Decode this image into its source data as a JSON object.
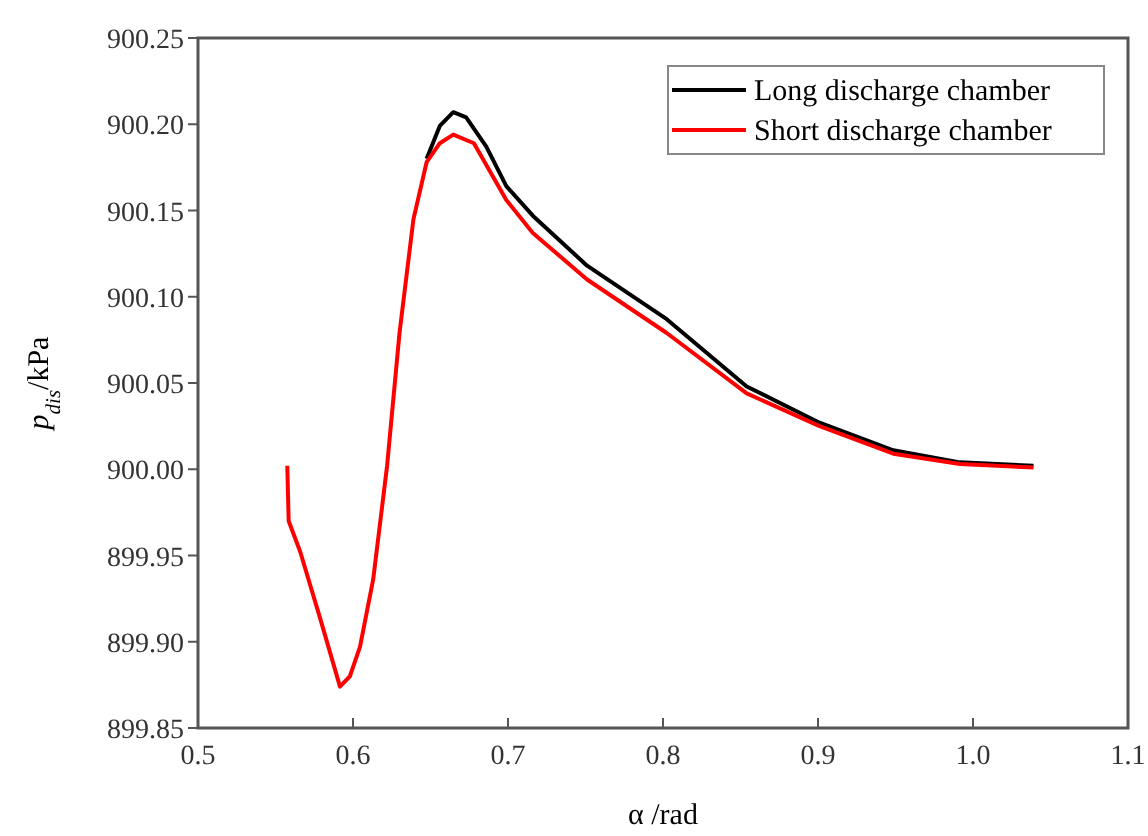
{
  "chart_data": {
    "type": "line",
    "xlabel": "α /rad",
    "ylabel": "p$_{dis}$/kPa",
    "xlim": [
      0.5,
      1.1
    ],
    "ylim": [
      899.85,
      900.25
    ],
    "xticks": [
      0.5,
      0.6,
      0.7,
      0.8,
      0.9,
      {
        "value": 1.0,
        "label": "1.0"
      },
      1.1
    ],
    "yticks": [
      899.85,
      {
        "value": 899.9,
        "label": "899.90"
      },
      899.95,
      {
        "value": 900.0,
        "label": "900.00"
      },
      900.05,
      {
        "value": 900.1,
        "label": "900.10"
      },
      900.15,
      {
        "value": 900.2,
        "label": "900.20"
      },
      900.25
    ],
    "legend": "top right",
    "grid": false,
    "line_style": "solid",
    "series": [
      {
        "name": "Long discharge chamber",
        "color": "#000000",
        "x": [
          0.6475,
          0.656,
          0.6647,
          0.673,
          0.686,
          0.699,
          0.716,
          0.751,
          0.8024,
          0.854,
          0.901,
          0.9486,
          0.9916,
          1.039
        ],
        "values": [
          900.18,
          900.199,
          900.207,
          900.204,
          900.187,
          900.164,
          900.147,
          900.118,
          900.087,
          900.048,
          900.027,
          900.011,
          900.004,
          900.002
        ]
      },
      {
        "name": "Short discharge chamber",
        "color": "#ff0000",
        "x": [
          0.5576,
          0.5585,
          0.566,
          0.579,
          0.5916,
          0.598,
          0.6045,
          0.613,
          0.622,
          0.63,
          0.639,
          0.6475,
          0.656,
          0.6647,
          0.678,
          0.699,
          0.716,
          0.751,
          0.8024,
          0.854,
          0.901,
          0.9486,
          0.9916,
          1.039
        ],
        "values": [
          900.002,
          899.97,
          899.952,
          899.913,
          899.874,
          899.88,
          899.897,
          899.936,
          900.002,
          900.079,
          900.145,
          900.178,
          900.189,
          900.194,
          900.189,
          900.156,
          900.137,
          900.11,
          900.079,
          900.044,
          900.025,
          900.009,
          900.003,
          900.001
        ]
      }
    ]
  }
}
